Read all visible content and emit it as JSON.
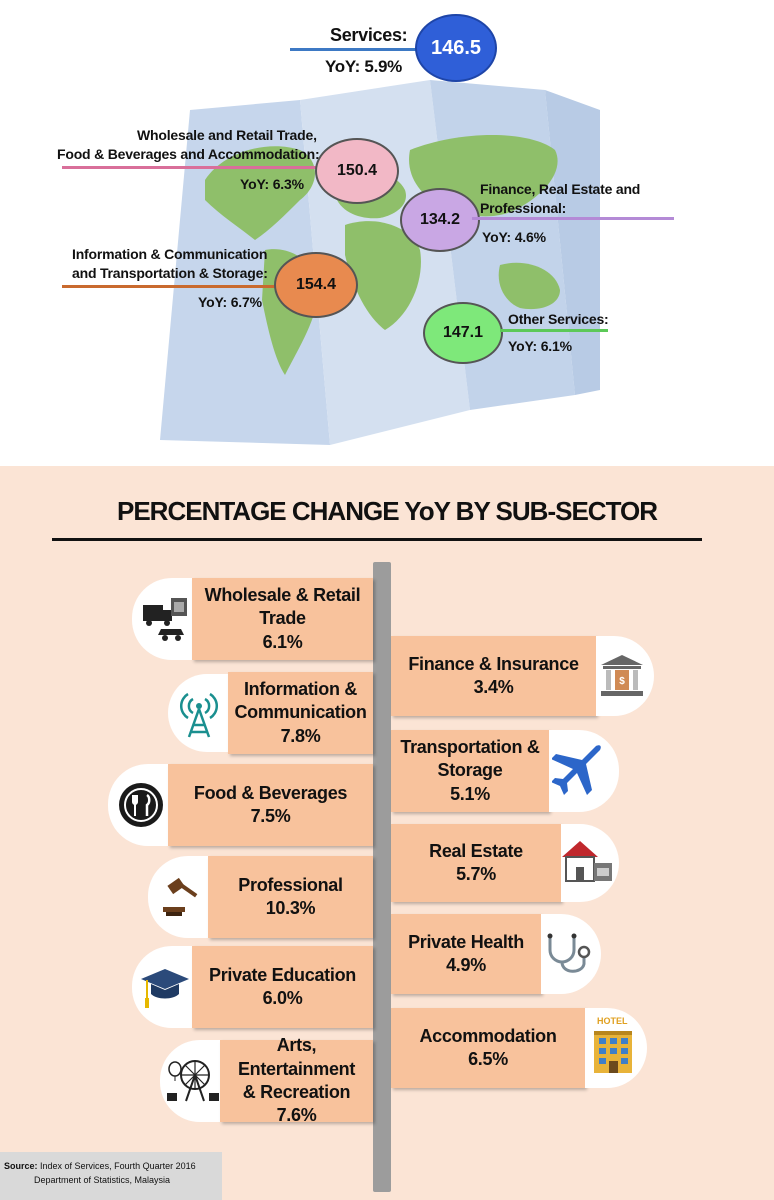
{
  "services": {
    "label": "Services:",
    "yoy": "YoY: 5.9%",
    "value": "146.5"
  },
  "wholesale_group": {
    "label_line1": "Wholesale and Retail Trade,",
    "label_line2": "Food & Beverages and Accommodation:",
    "yoy": "YoY: 6.3%",
    "value": "150.4"
  },
  "finance_group": {
    "label_line1": "Finance, Real Estate and",
    "label_line2": "Professional:",
    "yoy": "YoY: 4.6%",
    "value": "134.2"
  },
  "info_group": {
    "label_line1": "Information & Communication",
    "label_line2": "and Transportation & Storage:",
    "yoy": "YoY: 6.7%",
    "value": "154.4"
  },
  "other_group": {
    "label": "Other Services:",
    "yoy": "YoY: 6.1%",
    "value": "147.1"
  },
  "colors": {
    "services": "#2f5fd8",
    "wholesale": "#f2b8c6",
    "finance": "#c9a7e4",
    "info": "#e88a4f",
    "other": "#7ee87a",
    "box": "#f8c29c",
    "panel": "#fbe4d5"
  },
  "section_title": "PERCENTAGE CHANGE YoY BY SUB-SECTOR",
  "left_items": [
    {
      "line1": "Wholesale & Retail",
      "line2": "Trade",
      "value": "6.1%",
      "icon": "truck-shop-icon"
    },
    {
      "line1": "Information &",
      "line2": "Communication",
      "value": "7.8%",
      "icon": "antenna-icon"
    },
    {
      "line1": "Food & Beverages",
      "line2": "",
      "value": "7.5%",
      "icon": "plate-cutlery-icon"
    },
    {
      "line1": "Professional",
      "line2": "",
      "value": "10.3%",
      "icon": "gavel-icon"
    },
    {
      "line1": "Private Education",
      "line2": "",
      "value": "6.0%",
      "icon": "graduation-cap-icon"
    },
    {
      "line1": "Arts, Entertainment",
      "line2": "& Recreation",
      "value": "7.6%",
      "icon": "ferris-wheel-icon"
    }
  ],
  "right_items": [
    {
      "line1": "Finance & Insurance",
      "line2": "",
      "value": "3.4%",
      "icon": "bank-icon"
    },
    {
      "line1": "Transportation &",
      "line2": "Storage",
      "value": "5.1%",
      "icon": "airplane-icon"
    },
    {
      "line1": "Real Estate",
      "line2": "",
      "value": "5.7%",
      "icon": "house-icon"
    },
    {
      "line1": "Private Health",
      "line2": "",
      "value": "4.9%",
      "icon": "stethoscope-icon"
    },
    {
      "line1": "Accommodation",
      "line2": "",
      "value": "6.5%",
      "icon": "hotel-icon"
    }
  ],
  "hotel_sign": "HOTEL",
  "source": {
    "label": "Source:",
    "line1": "Index of Services, Fourth Quarter 2016",
    "line2": "Department of Statistics, Malaysia"
  }
}
